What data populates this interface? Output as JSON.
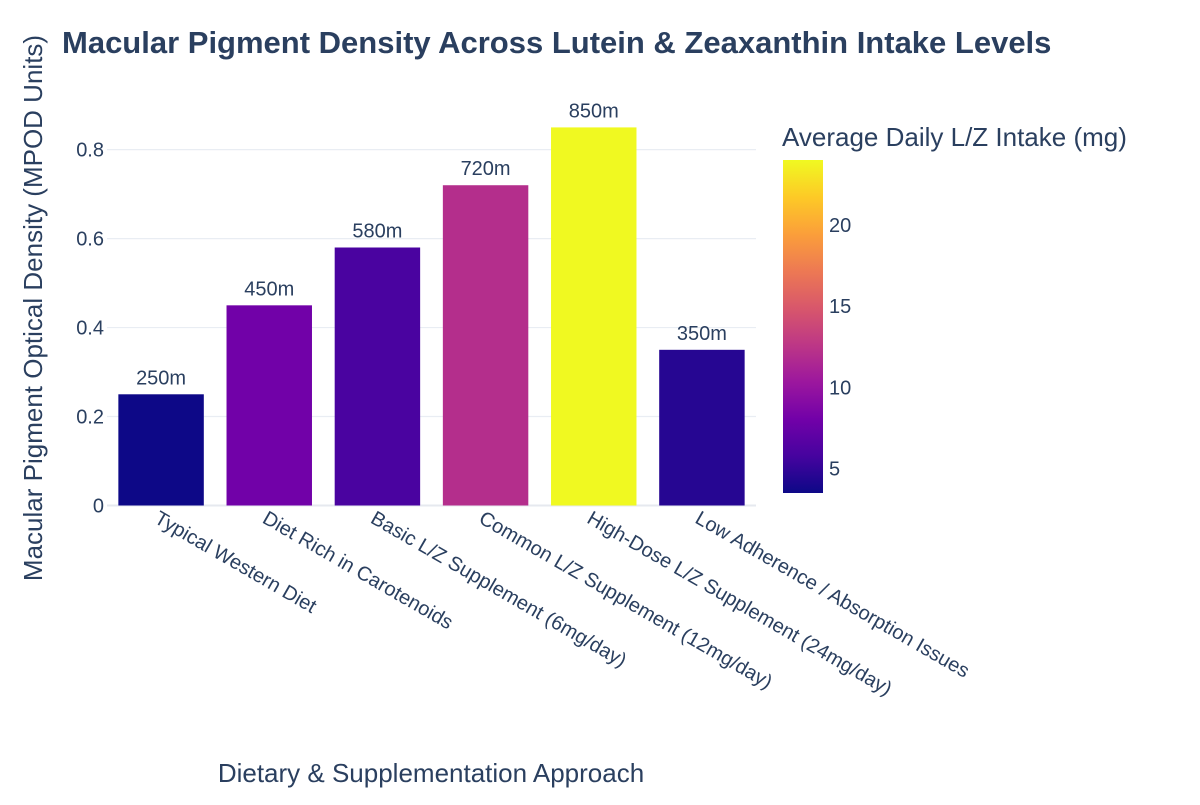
{
  "chart_data": {
    "type": "bar",
    "title": "Macular Pigment Density Across Lutein & Zeaxanthin Intake Levels",
    "xlabel": "Dietary & Supplementation Approach",
    "ylabel": "Macular Pigment Optical Density (MPOD Units)",
    "categories": [
      "Typical Western Diet",
      "Diet Rich in Carotenoids",
      "Basic L/Z Supplement (6mg/day)",
      "Common L/Z Supplement (12mg/day)",
      "High-Dose L/Z Supplement (24mg/day)",
      "Low Adherence / Absorption Issues"
    ],
    "values": [
      0.25,
      0.45,
      0.58,
      0.72,
      0.85,
      0.35
    ],
    "value_labels": [
      "250m",
      "450m",
      "580m",
      "720m",
      "850m",
      "350m"
    ],
    "color_values": [
      3.5,
      8,
      6,
      12,
      24,
      4.5
    ],
    "ylim": [
      0,
      0.85
    ],
    "yticks": [
      0,
      0.2,
      0.4,
      0.6,
      0.8
    ],
    "ytick_labels": [
      "0",
      "0.2",
      "0.4",
      "0.6",
      "0.8"
    ],
    "grid": true,
    "colorbar": {
      "title": "Average Daily L/Z Intake (mg)",
      "range": [
        3.5,
        24
      ],
      "ticks": [
        5,
        10,
        15,
        20
      ],
      "tick_labels": [
        "5",
        "10",
        "15",
        "20"
      ],
      "colorscale": "Plasma",
      "placement": "right"
    }
  }
}
